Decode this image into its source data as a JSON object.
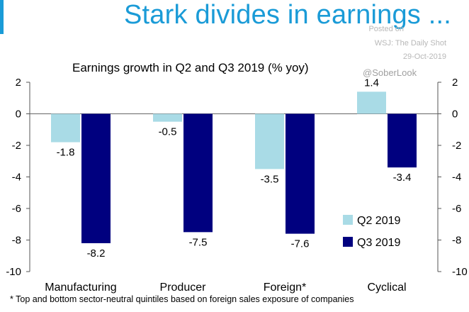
{
  "header": {
    "title": "Stark divides in earnings ...",
    "source_lines": [
      "Posted on",
      "WSJ: The Daily Shot",
      "29-Oct-2019"
    ],
    "handle": "@SoberLook"
  },
  "footnote": "* Top and bottom sector-neutral quintiles based on foreign sales exposure of companies",
  "colors": {
    "accent": "#1a9bd7",
    "q2": "#a9dbe6",
    "q3": "#00007f"
  },
  "chart_data": {
    "type": "bar",
    "title": "Earnings growth in Q2 and Q3 2019 (% yoy)",
    "categories": [
      "Manufacturing",
      "Producer",
      "Foreign*",
      "Cyclical"
    ],
    "series": [
      {
        "name": "Q2 2019",
        "values": [
          -1.8,
          -0.5,
          -3.5,
          1.4
        ]
      },
      {
        "name": "Q3 2019",
        "values": [
          -8.2,
          -7.5,
          -7.6,
          -3.4
        ]
      }
    ],
    "ylim": [
      -10,
      2
    ],
    "yticks": [
      2,
      0,
      -2,
      -4,
      -6,
      -8,
      -10
    ],
    "xlabel": "",
    "ylabel": "",
    "legend": "bottom-right"
  }
}
